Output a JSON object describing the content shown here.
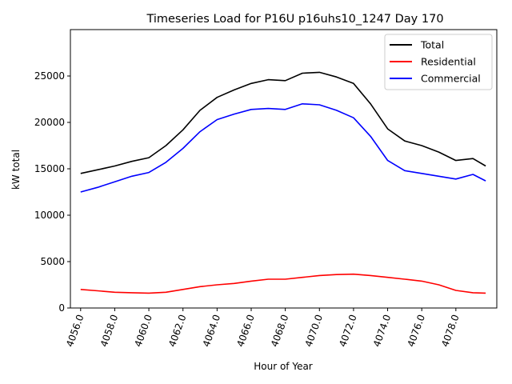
{
  "chart_data": {
    "type": "line",
    "title": "Timeseries Load for P16U p16uhs10_1247  Day 170",
    "xlabel": "Hour of Year",
    "ylabel": "kW total",
    "xlim": [
      4055.4,
      4080.4
    ],
    "ylim": [
      0,
      30000
    ],
    "xticks": [
      4056,
      4058,
      4060,
      4062,
      4064,
      4066,
      4068,
      4070,
      4072,
      4074,
      4076,
      4078
    ],
    "xtick_labels": [
      "4056.0",
      "4058.0",
      "4060.0",
      "4062.0",
      "4064.0",
      "4066.0",
      "4068.0",
      "4070.0",
      "4072.0",
      "4074.0",
      "4076.0",
      "4078.0"
    ],
    "yticks": [
      0,
      5000,
      10000,
      15000,
      20000,
      25000
    ],
    "ytick_labels": [
      "0",
      "5000",
      "10000",
      "15000",
      "20000",
      "25000"
    ],
    "grid": false,
    "legend": {
      "placement": "top-right",
      "entries": [
        "Total",
        "Residential",
        "Commercial"
      ]
    },
    "x": [
      4056,
      4057,
      4058,
      4059,
      4060,
      4061,
      4062,
      4063,
      4064,
      4065,
      4066,
      4067,
      4068,
      4069,
      4070,
      4071,
      4072,
      4073,
      4074,
      4075,
      4076,
      4077,
      4078,
      4079,
      4079.75
    ],
    "series": [
      {
        "name": "Total",
        "color": "#000000",
        "values": [
          14500,
          14900,
          15300,
          15800,
          16200,
          17500,
          19200,
          21300,
          22700,
          23500,
          24200,
          24600,
          24500,
          25300,
          25400,
          24900,
          24200,
          22000,
          19300,
          18000,
          17500,
          16800,
          15900,
          16100,
          15300
        ]
      },
      {
        "name": "Residential",
        "color": "#ff0000",
        "values": [
          2000,
          1850,
          1700,
          1650,
          1600,
          1700,
          2000,
          2300,
          2500,
          2650,
          2900,
          3100,
          3100,
          3300,
          3500,
          3600,
          3650,
          3500,
          3300,
          3100,
          2900,
          2500,
          1900,
          1650,
          1600
        ]
      },
      {
        "name": "Commercial",
        "color": "#0000ff",
        "values": [
          12500,
          13000,
          13600,
          14200,
          14600,
          15700,
          17200,
          19000,
          20300,
          20900,
          21400,
          21500,
          21400,
          22000,
          21900,
          21300,
          20500,
          18500,
          15900,
          14800,
          14500,
          14200,
          13900,
          14400,
          13700
        ]
      }
    ]
  }
}
